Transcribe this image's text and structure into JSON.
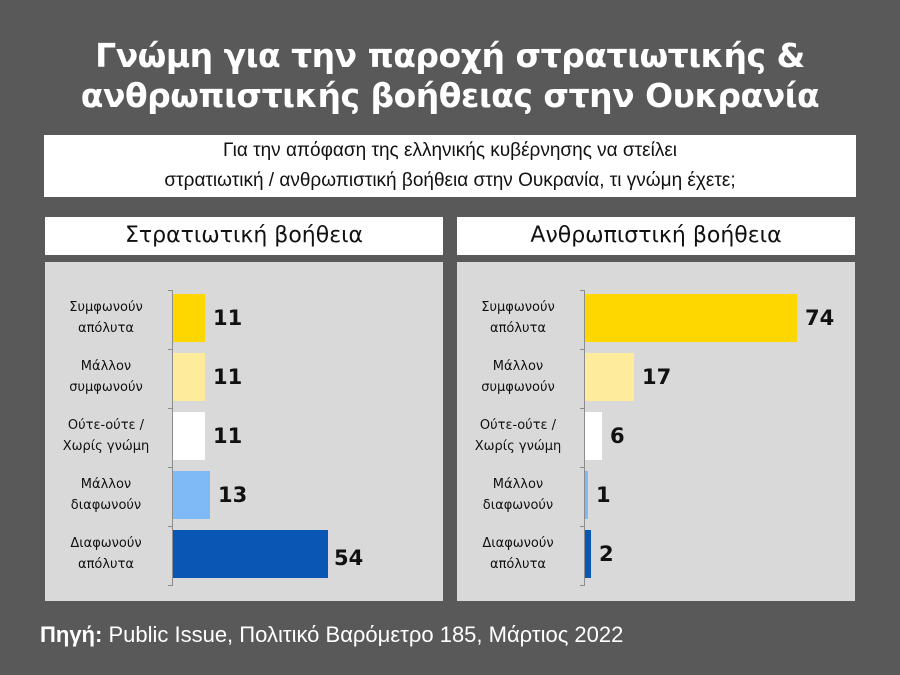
{
  "title": {
    "line1": "Γνώμη για την παροχή στρατιωτικής &",
    "line2": "ανθρωπιστικής βοήθειας στην Ουκρανία"
  },
  "question": {
    "line1": "Για την απόφαση της ελληνικής κυβέρνησης να στείλει",
    "line2": "στρατιωτική / ανθρωπιστική βοήθεια στην Ουκρανία, τι γνώμη έχετε;"
  },
  "source": {
    "label": "Πηγή:",
    "text": " Public Issue, Πολιτικό Βαρόμετρο 185, Μάρτιος 2022"
  },
  "categories": [
    {
      "line1": "Συμφωνούν",
      "line2": "απόλυτα",
      "color": "#FFD700"
    },
    {
      "line1": "Μάλλον",
      "line2": "συμφωνούν",
      "color": "#FFEB9C"
    },
    {
      "line1": "Ούτε-ούτε /",
      "line2": "Χωρίς γνώμη",
      "color": "#FFFFFF"
    },
    {
      "line1": "Μάλλον",
      "line2": "διαφωνούν",
      "color": "#7FBAF7"
    },
    {
      "line1": "Διαφωνούν",
      "line2": "απόλυτα",
      "color": "#0A56B5"
    }
  ],
  "panels": [
    {
      "title": "Στρατιωτική βοήθεια",
      "values": [
        "11",
        "11",
        "11",
        "13",
        "54"
      ]
    },
    {
      "title": "Ανθρωπιστική βοήθεια",
      "values": [
        "74",
        "17",
        "6",
        "1",
        "2"
      ]
    }
  ],
  "chart_data": [
    {
      "type": "bar",
      "orientation": "horizontal",
      "title": "Στρατιωτική βοήθεια",
      "categories": [
        "Συμφωνούν απόλυτα",
        "Μάλλον συμφωνούν",
        "Ούτε-ούτε / Χωρίς γνώμη",
        "Μάλλον διαφωνούν",
        "Διαφωνούν απόλυτα"
      ],
      "values": [
        11,
        11,
        11,
        13,
        54
      ],
      "colors": [
        "#FFD700",
        "#FFEB9C",
        "#FFFFFF",
        "#7FBAF7",
        "#0A56B5"
      ],
      "xlabel": "",
      "ylabel": "",
      "grid": false,
      "legend": false
    },
    {
      "type": "bar",
      "orientation": "horizontal",
      "title": "Ανθρωπιστική βοήθεια",
      "categories": [
        "Συμφωνούν απόλυτα",
        "Μάλλον συμφωνούν",
        "Ούτε-ούτε / Χωρίς γνώμη",
        "Μάλλον διαφωνούν",
        "Διαφωνούν απόλυτα"
      ],
      "values": [
        74,
        17,
        6,
        1,
        2
      ],
      "colors": [
        "#FFD700",
        "#FFEB9C",
        "#FFFFFF",
        "#7FBAF7",
        "#0A56B5"
      ],
      "xlabel": "",
      "ylabel": "",
      "grid": false,
      "legend": false
    }
  ]
}
